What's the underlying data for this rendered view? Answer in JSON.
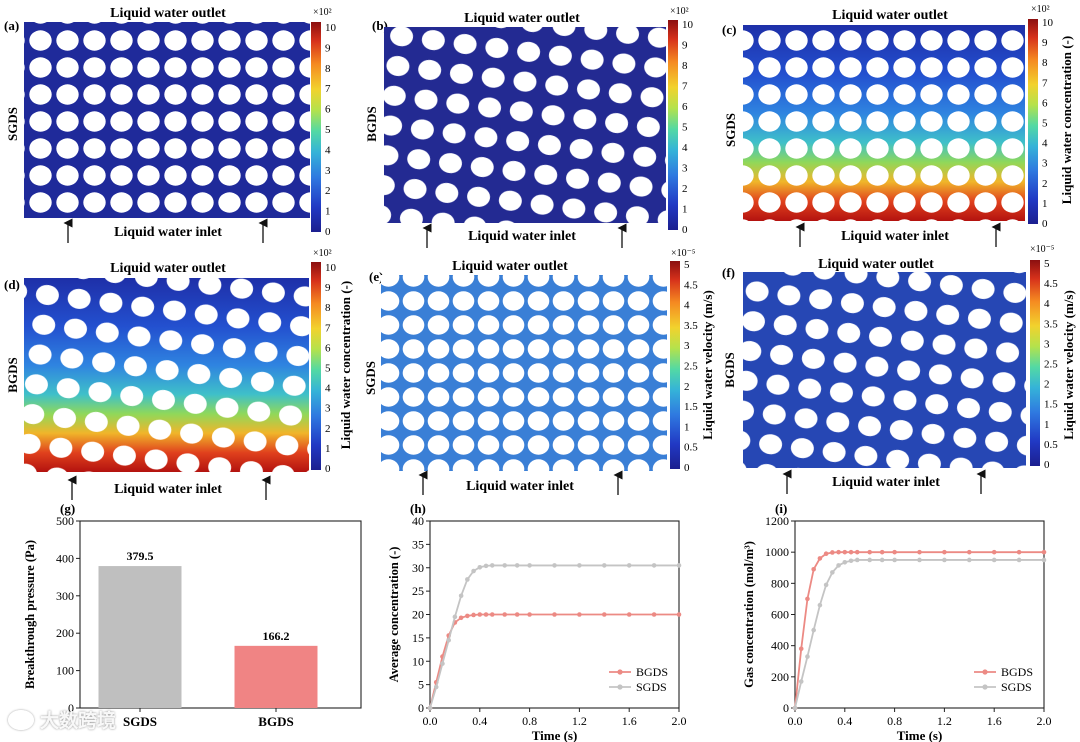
{
  "colors": {
    "jet": [
      "#1c1f8f",
      "#2139c4",
      "#2f79e0",
      "#35b3d8",
      "#53d9a4",
      "#b4e24c",
      "#f2d22d",
      "#f58a21",
      "#d6311b",
      "#8b0f10"
    ],
    "sgds_bar": "#bfbfbf",
    "bgds_bar": "#f08484",
    "bgds_line": "#ec8a84",
    "sgds_line": "#c4c4c4"
  },
  "panels": [
    {
      "id": "a",
      "label": "(a)",
      "side_label": "SGDS",
      "outlet": "Liquid water outlet",
      "inlet": "Liquid water inlet",
      "colorbar": {
        "exponent": "×10²",
        "ticks": [
          "10",
          "9",
          "8",
          "7",
          "6",
          "5",
          "4",
          "3",
          "2",
          "1",
          "0"
        ],
        "title": ""
      }
    },
    {
      "id": "b",
      "label": "(b)",
      "side_label": "BGDS",
      "outlet": "Liquid water outlet",
      "inlet": "Liquid water inlet",
      "colorbar": {
        "exponent": "×10²",
        "ticks": [
          "10",
          "9",
          "8",
          "7",
          "6",
          "5",
          "4",
          "3",
          "2",
          "1",
          "0"
        ],
        "title": ""
      }
    },
    {
      "id": "c",
      "label": "(c)",
      "side_label": "SGDS",
      "outlet": "Liquid water outlet",
      "inlet": "Liquid water inlet",
      "colorbar": {
        "exponent": "×10²",
        "ticks": [
          "10",
          "9",
          "8",
          "7",
          "6",
          "5",
          "4",
          "3",
          "2",
          "1",
          "0"
        ],
        "title": "Liquid water concentration (-)"
      }
    },
    {
      "id": "d",
      "label": "(d)",
      "side_label": "BGDS",
      "outlet": "Liquid water outlet",
      "inlet": "Liquid water inlet",
      "colorbar": {
        "exponent": "×10²",
        "ticks": [
          "10",
          "9",
          "8",
          "7",
          "6",
          "5",
          "4",
          "3",
          "2",
          "1",
          "0"
        ],
        "title": "Liquid water concentration (-)"
      }
    },
    {
      "id": "e",
      "label": "(e)",
      "side_label": "SGDS",
      "outlet": "Liquid water outlet",
      "inlet": "Liquid water inlet",
      "colorbar": {
        "exponent": "×10⁻⁵",
        "ticks": [
          "5",
          "4.5",
          "4",
          "3.5",
          "3",
          "2.5",
          "2",
          "1.5",
          "1",
          "0.5",
          "0"
        ],
        "title": "Liquid water velocity (m/s)"
      }
    },
    {
      "id": "f",
      "label": "(f)",
      "side_label": "BGDS",
      "outlet": "Liquid water outlet",
      "inlet": "Liquid water inlet",
      "colorbar": {
        "exponent": "×10⁻⁵",
        "ticks": [
          "5",
          "4.5",
          "4",
          "3.5",
          "3",
          "2.5",
          "2",
          "1.5",
          "1",
          "0.5",
          "0"
        ],
        "title": "Liquid water velocity (m/s)"
      }
    }
  ],
  "chart_data": [
    {
      "id": "g",
      "panel_label": "(g)",
      "type": "bar",
      "title": "",
      "xlabel": "",
      "ylabel": "Breakthrough pressure (Pa)",
      "categories": [
        "SGDS",
        "BGDS"
      ],
      "values": [
        379.5,
        166.2
      ],
      "value_labels": [
        "379.5",
        "166.2"
      ],
      "ylim": [
        0,
        500
      ],
      "yticks": [
        "0",
        "100",
        "200",
        "300",
        "400",
        "500"
      ]
    },
    {
      "id": "h",
      "panel_label": "(h)",
      "type": "line",
      "title": "",
      "xlabel": "Time (s)",
      "ylabel": "Average concentration (-)",
      "xlim": [
        0,
        2.0
      ],
      "ylim": [
        0,
        40
      ],
      "xticks": [
        "0.0",
        "0.4",
        "0.8",
        "1.2",
        "1.6",
        "2.0"
      ],
      "yticks": [
        "0",
        "5",
        "10",
        "15",
        "20",
        "25",
        "30",
        "35",
        "40"
      ],
      "legend_position": "bottom-right",
      "series": [
        {
          "name": "BGDS",
          "x": [
            0,
            0.05,
            0.1,
            0.15,
            0.2,
            0.25,
            0.3,
            0.35,
            0.4,
            0.45,
            0.5,
            0.6,
            0.7,
            0.8,
            1.0,
            1.2,
            1.4,
            1.6,
            1.8,
            2.0
          ],
          "y": [
            0,
            5.5,
            11,
            15.5,
            18.3,
            19.3,
            19.7,
            19.9,
            20,
            20,
            20,
            20,
            20,
            20,
            20,
            20,
            20,
            20,
            20,
            20
          ]
        },
        {
          "name": "SGDS",
          "x": [
            0,
            0.05,
            0.1,
            0.15,
            0.2,
            0.25,
            0.3,
            0.35,
            0.4,
            0.45,
            0.5,
            0.6,
            0.7,
            0.8,
            1.0,
            1.2,
            1.4,
            1.6,
            1.8,
            2.0
          ],
          "y": [
            0,
            4.5,
            9.5,
            14.5,
            19.5,
            24,
            27.5,
            29.3,
            30.1,
            30.4,
            30.5,
            30.5,
            30.5,
            30.5,
            30.5,
            30.5,
            30.5,
            30.5,
            30.5,
            30.5
          ]
        }
      ]
    },
    {
      "id": "i",
      "panel_label": "(i)",
      "type": "line",
      "title": "",
      "xlabel": "Time (s)",
      "ylabel": "Gas concentration (mol/m³)",
      "xlim": [
        0,
        2.0
      ],
      "ylim": [
        0,
        1200
      ],
      "xticks": [
        "0.0",
        "0.4",
        "0.8",
        "1.2",
        "1.6",
        "2.0"
      ],
      "yticks": [
        "0",
        "200",
        "400",
        "600",
        "800",
        "1000",
        "1200"
      ],
      "legend_position": "bottom-right",
      "series": [
        {
          "name": "BGDS",
          "x": [
            0,
            0.05,
            0.1,
            0.15,
            0.2,
            0.25,
            0.3,
            0.35,
            0.4,
            0.45,
            0.5,
            0.6,
            0.7,
            0.8,
            1.0,
            1.2,
            1.4,
            1.6,
            1.8,
            2.0
          ],
          "y": [
            0,
            380,
            700,
            890,
            960,
            990,
            998,
            1000,
            1000,
            1000,
            1000,
            1000,
            1000,
            1000,
            1000,
            1000,
            1000,
            1000,
            1000,
            1000
          ]
        },
        {
          "name": "SGDS",
          "x": [
            0,
            0.05,
            0.1,
            0.15,
            0.2,
            0.25,
            0.3,
            0.35,
            0.4,
            0.45,
            0.5,
            0.6,
            0.7,
            0.8,
            1.0,
            1.2,
            1.4,
            1.6,
            1.8,
            2.0
          ],
          "y": [
            0,
            170,
            330,
            500,
            660,
            790,
            870,
            915,
            935,
            945,
            950,
            950,
            950,
            950,
            950,
            950,
            950,
            950,
            950,
            950
          ]
        }
      ]
    }
  ],
  "watermark": "大数跨境"
}
